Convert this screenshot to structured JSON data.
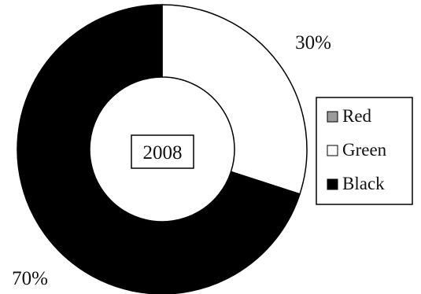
{
  "chart_data": {
    "type": "pie",
    "style": "donut",
    "center_label": "2008",
    "categories": [
      "Red",
      "Green",
      "Black"
    ],
    "values": [
      0,
      30,
      70
    ],
    "data_labels": [
      "",
      "30%",
      "70%"
    ],
    "colors": [
      "#9a9a9a",
      "#ffffff",
      "#000000"
    ],
    "title": "",
    "legend": {
      "position": "right",
      "items": [
        "Red",
        "Green",
        "Black"
      ]
    },
    "grid": false
  }
}
